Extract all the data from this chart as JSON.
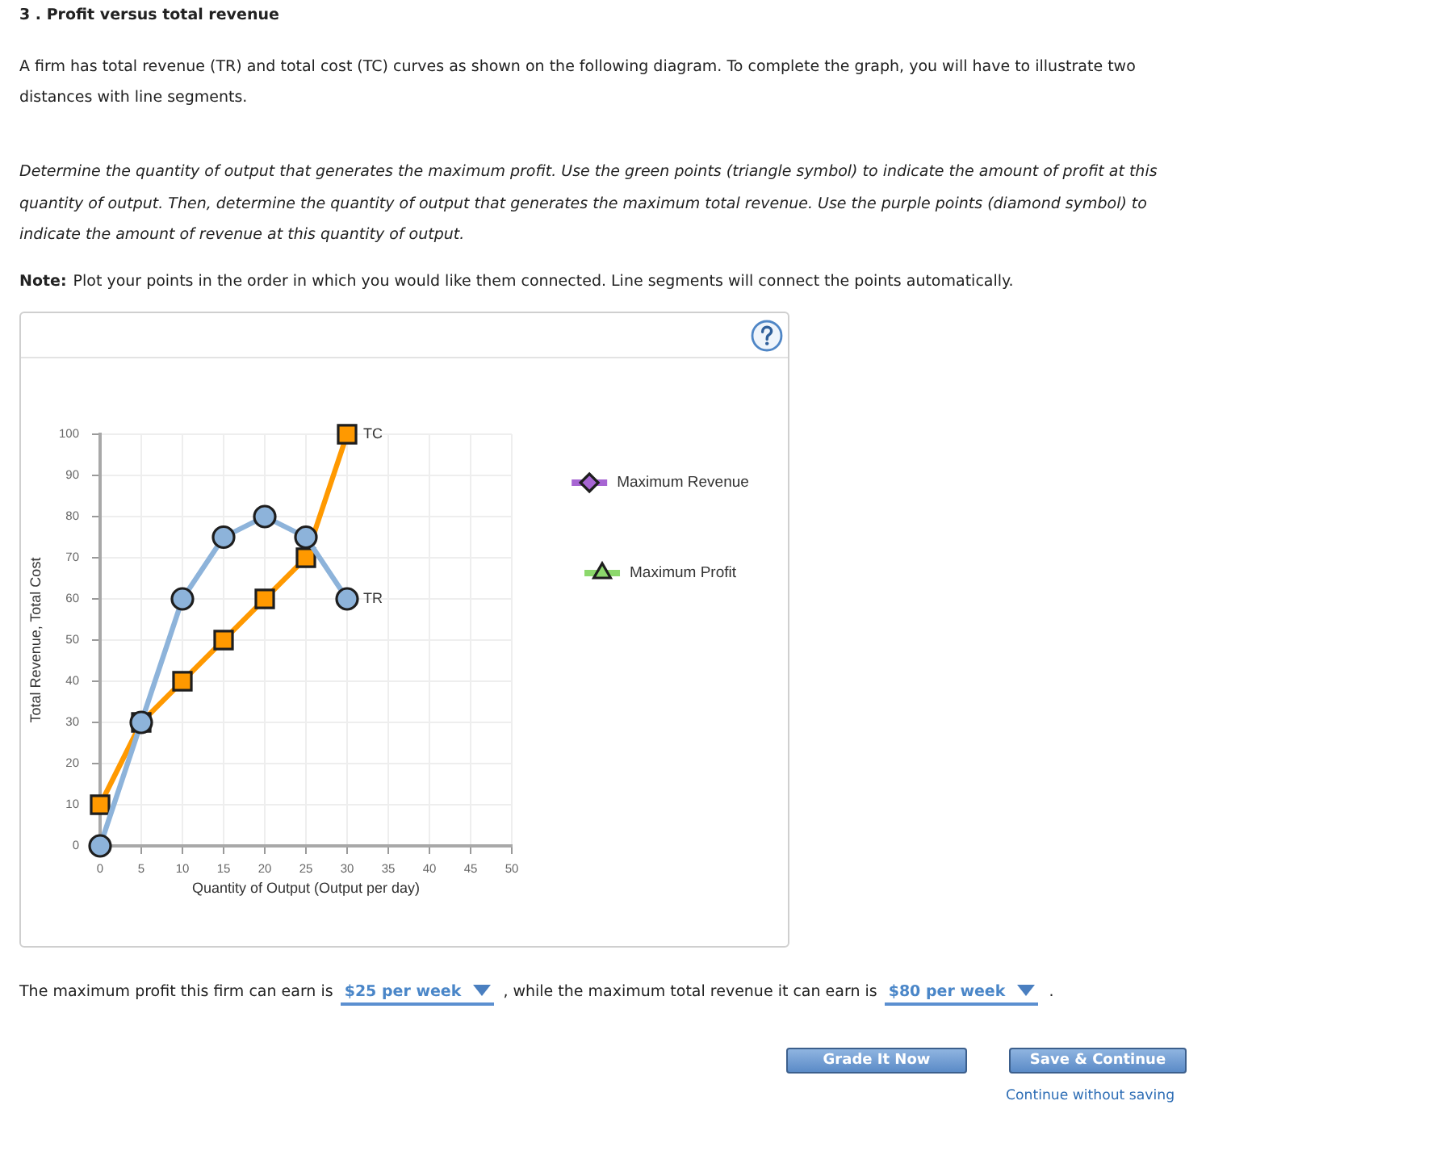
{
  "chart_data": {
    "type": "line",
    "title": "3 . Profit versus total revenue",
    "subtitle": "A firm has total revenue (TR) and total cost (TC) curves as shown on the following diagram. To complete the graph, you will have to illustrate two distances with line segments.",
    "xlabel": "Quantity of Output (Output per day)",
    "ylabel": "Total Revenue, Total Cost",
    "x": [
      0,
      5,
      10,
      15,
      20,
      25,
      30
    ],
    "series": [
      {
        "name": "TR",
        "color": "#8db3da",
        "marker": "circle",
        "values": [
          0,
          30,
          60,
          75,
          80,
          75,
          60
        ]
      },
      {
        "name": "TC",
        "color": "#ff9900",
        "marker": "square",
        "values": [
          10,
          30,
          40,
          50,
          60,
          70,
          100
        ]
      },
      {
        "name": "Maximum Revenue",
        "color": "#a765d3",
        "marker": "diamond",
        "values": [
          null,
          null,
          null,
          null,
          null,
          null,
          null
        ]
      },
      {
        "name": "Maximum Profit",
        "color": "#8cd86c",
        "marker": "triangle",
        "values": [
          null,
          null,
          null,
          null,
          null,
          null,
          null
        ]
      }
    ],
    "xlim": [
      0,
      50
    ],
    "xticks": [
      0,
      5,
      10,
      15,
      20,
      25,
      30,
      35,
      40,
      45,
      50
    ],
    "ylim": [
      0,
      100
    ],
    "yticks": [
      0,
      10,
      20,
      30,
      40,
      50,
      60,
      70,
      80,
      90,
      100
    ],
    "grid": true,
    "legend": "right",
    "line_style": "solid",
    "annotations": [
      "Determine the quantity of output that generates the maximum profit. Use the green points (triangle symbol) to indicate the amount of profit at this quantity of output. Then, determine the quantity of output that generates the maximum total revenue. Use the purple points (diamond symbol) to indicate the amount of revenue at this quantity of output.",
      "Note:",
      "Plot your points in the order in which you would like them connected. Line segments will connect the points automatically.",
      "The maximum profit this firm can earn is",
      "$25 per week",
      ", while the maximum total revenue it can earn is",
      "$80 per week",
      ".",
      "Grade It Now",
      "Save & Continue",
      "Continue without saving"
    ]
  }
}
